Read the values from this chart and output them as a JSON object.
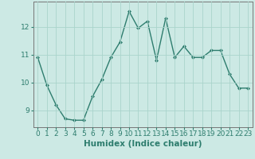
{
  "x": [
    0,
    1,
    2,
    3,
    4,
    5,
    6,
    7,
    8,
    9,
    10,
    11,
    12,
    13,
    14,
    15,
    16,
    17,
    18,
    19,
    20,
    21,
    22,
    23
  ],
  "y": [
    10.9,
    9.9,
    9.2,
    8.7,
    8.65,
    8.65,
    9.5,
    10.1,
    10.9,
    11.45,
    12.55,
    11.95,
    12.2,
    10.8,
    12.3,
    10.9,
    11.3,
    10.9,
    10.9,
    11.15,
    11.15,
    10.3,
    9.8,
    9.8
  ],
  "line_color": "#2e7d6e",
  "marker": "D",
  "marker_size": 2.0,
  "bg_color": "#cce9e4",
  "grid_color": "#aad4cc",
  "xlabel": "Humidex (Indice chaleur)",
  "xlabel_fontsize": 7.5,
  "yticks": [
    9,
    10,
    11,
    12
  ],
  "xticks": [
    0,
    1,
    2,
    3,
    4,
    5,
    6,
    7,
    8,
    9,
    10,
    11,
    12,
    13,
    14,
    15,
    16,
    17,
    18,
    19,
    20,
    21,
    22,
    23
  ],
  "ylim": [
    8.4,
    12.9
  ],
  "xlim": [
    -0.5,
    23.5
  ],
  "tick_fontsize": 6.5,
  "line_width": 1.0
}
